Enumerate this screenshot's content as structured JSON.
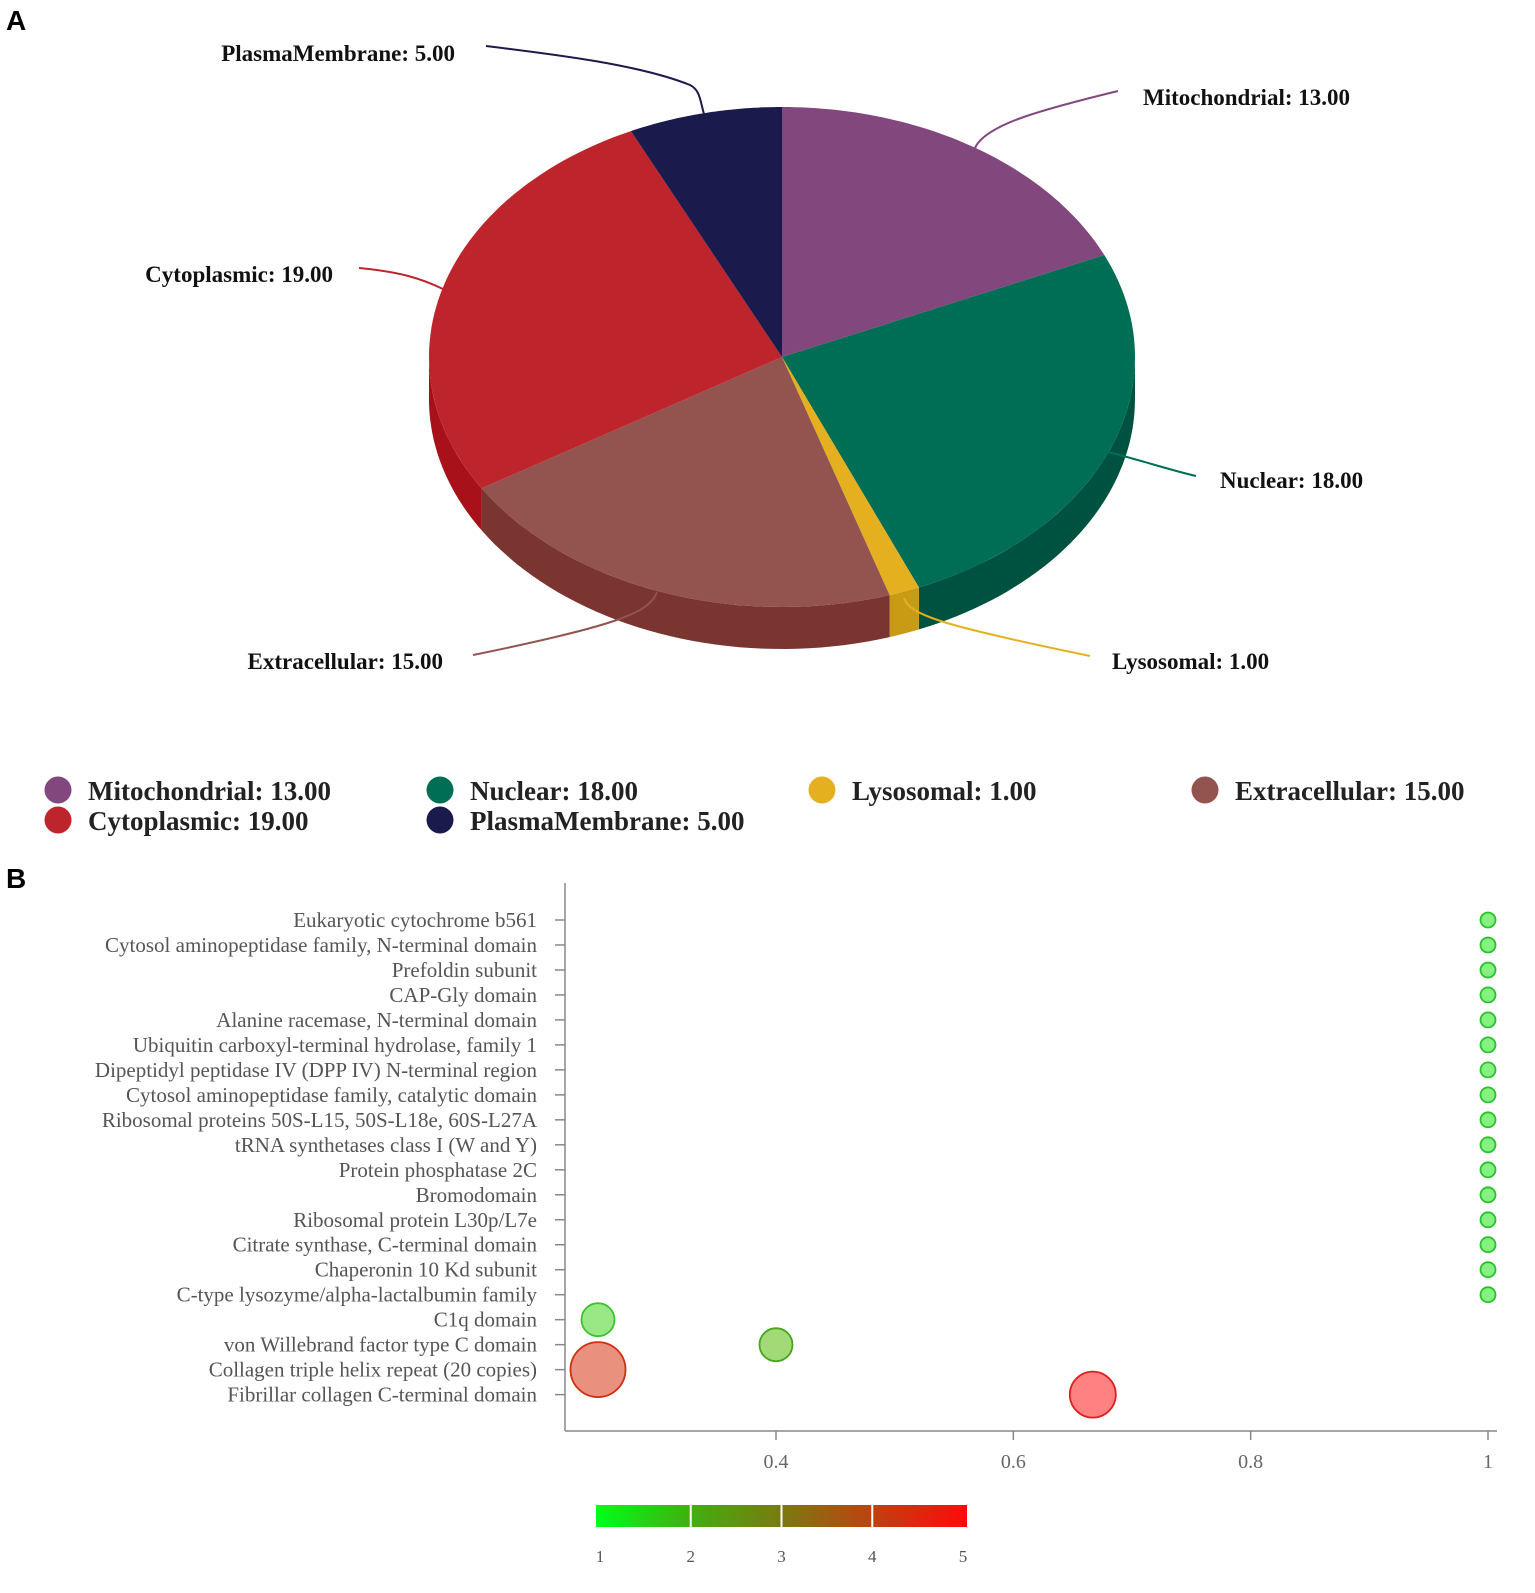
{
  "panels": {
    "a": "A",
    "b": "B"
  },
  "chart_data": [
    {
      "type": "pie",
      "style": "3d",
      "slices": [
        {
          "label": "Mitochondrial",
          "value": 13,
          "text": "Mitochondrial: 13.00",
          "color": "#82487e",
          "side": "#6a3a66"
        },
        {
          "label": "Nuclear",
          "value": 18,
          "text": "Nuclear: 18.00",
          "color": "#006e54",
          "side": "#005240"
        },
        {
          "label": "Lysosomal",
          "value": 1,
          "text": "Lysosomal: 1.00",
          "color": "#e5b020",
          "side": "#c99a14"
        },
        {
          "label": "Extracellular",
          "value": 15,
          "text": "Extracellular: 15.00",
          "color": "#93534e",
          "side": "#7a3530"
        },
        {
          "label": "Cytoplasmic",
          "value": 19,
          "text": "Cytoplasmic: 19.00",
          "color": "#be242b",
          "side": "#a8101a"
        },
        {
          "label": "PlasmaMembrane",
          "value": 5,
          "text": "PlasmaMembrane: 5.00",
          "color": "#1a1a4c",
          "side": "#121238"
        }
      ],
      "legend": {
        "placement": "bottom",
        "entries": [
          "Mitochondrial: 13.00",
          "Nuclear: 18.00",
          "Lysosomal: 1.00",
          "Extracellular: 15.00",
          "Cytoplasmic: 19.00",
          "PlasmaMembrane: 5.00"
        ]
      }
    },
    {
      "type": "scatter",
      "subtype": "bubble",
      "categories": [
        "Eukaryotic cytochrome b561",
        "Cytosol aminopeptidase family, N-terminal domain",
        "Prefoldin subunit",
        "CAP-Gly domain",
        "Alanine racemase, N-terminal domain",
        "Ubiquitin carboxyl-terminal hydrolase, family 1",
        "Dipeptidyl peptidase IV (DPP IV) N-terminal region",
        "Cytosol aminopeptidase family, catalytic domain",
        "Ribosomal proteins 50S-L15, 50S-L18e, 60S-L27A",
        "tRNA synthetases class I (W and Y)",
        "Protein phosphatase 2C",
        "Bromodomain",
        "Ribosomal protein L30p/L7e",
        "Citrate synthase, C-terminal domain",
        "Chaperonin 10 Kd subunit",
        "C-type lysozyme/alpha-lactalbumin family",
        "C1q domain",
        "von Willebrand factor type C domain",
        "Collagen triple helix repeat (20 copies)",
        "Fibrillar collagen C-terminal domain"
      ],
      "points": [
        {
          "x": 1,
          "count": 1
        },
        {
          "x": 1,
          "count": 1
        },
        {
          "x": 1,
          "count": 1
        },
        {
          "x": 1,
          "count": 1
        },
        {
          "x": 1,
          "count": 1
        },
        {
          "x": 1,
          "count": 1
        },
        {
          "x": 1,
          "count": 1
        },
        {
          "x": 1,
          "count": 1
        },
        {
          "x": 1,
          "count": 1
        },
        {
          "x": 1,
          "count": 1
        },
        {
          "x": 1,
          "count": 1
        },
        {
          "x": 1,
          "count": 1
        },
        {
          "x": 1,
          "count": 1
        },
        {
          "x": 1,
          "count": 1
        },
        {
          "x": 1,
          "count": 1
        },
        {
          "x": 1,
          "count": 1
        },
        {
          "x": 0.25,
          "count": 2
        },
        {
          "x": 0.4,
          "count": 2
        },
        {
          "x": 0.25,
          "count": 4
        },
        {
          "x": 0.667,
          "count": 5
        }
      ],
      "xlim": [
        0.22,
        1.0
      ],
      "xticks": [
        0.4,
        0.6,
        0.8,
        1
      ],
      "xtick_labels": [
        "0.4",
        "0.6",
        "0.8",
        "1"
      ],
      "colorbar": {
        "min": 1,
        "max": 5,
        "ticks": [
          "1",
          "2",
          "3",
          "4",
          "5"
        ],
        "colors": [
          "#00ff00",
          "#ff0000"
        ]
      }
    }
  ]
}
